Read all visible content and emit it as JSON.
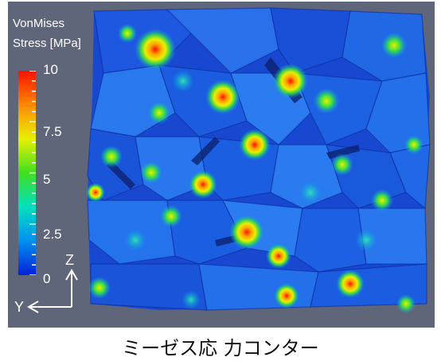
{
  "legend": {
    "title_line1": "VonMises",
    "title_line2": "Stress [MPa]",
    "ticks": [
      "10",
      "7.5",
      "5",
      "2.5",
      "0"
    ]
  },
  "axes": {
    "z_label": "Z",
    "y_label": "Y"
  },
  "caption": "ミーゼス応 力コンター",
  "colors": {
    "background": "#606679",
    "colormap": [
      "#0020d8",
      "#0090f0",
      "#00e0c0",
      "#40e020",
      "#e8f000",
      "#ff8800",
      "#ff1000"
    ]
  }
}
